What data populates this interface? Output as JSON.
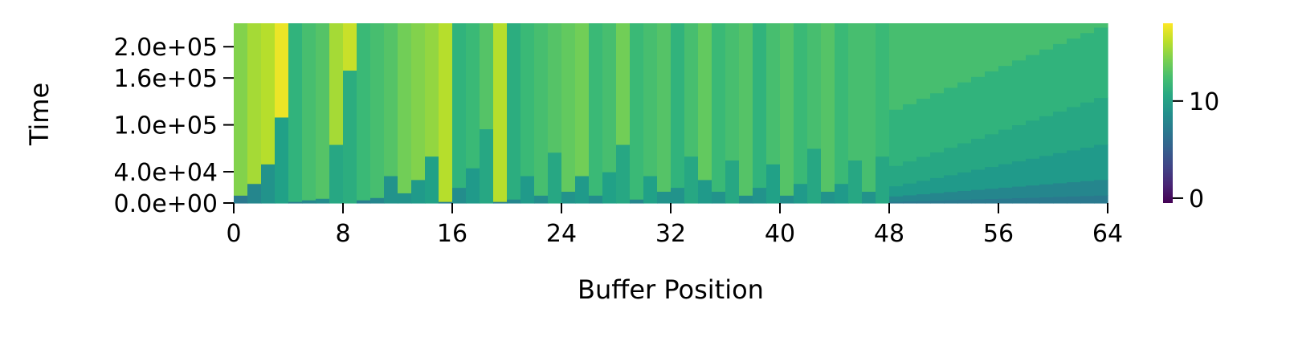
{
  "chart_data": {
    "type": "heatmap",
    "title": "",
    "xlabel": "Buffer Position",
    "ylabel": "Time",
    "x_range": [
      0,
      64
    ],
    "x_ticks": [
      "0",
      "8",
      "16",
      "24",
      "32",
      "40",
      "48",
      "56",
      "64"
    ],
    "y_range": [
      0,
      230000
    ],
    "y_ticks": [
      {
        "value": 0,
        "label": "0.0e+00"
      },
      {
        "value": 40000,
        "label": "4.0e+04"
      },
      {
        "value": 100000,
        "label": "1.0e+05"
      },
      {
        "value": 160000,
        "label": "1.6e+05"
      },
      {
        "value": 200000,
        "label": "2.0e+05"
      }
    ],
    "colorbar": {
      "colormap": "viridis",
      "range": [
        -0.5,
        18
      ],
      "ticks": [
        "0",
        "10"
      ]
    },
    "columns": [
      {
        "col": 0,
        "bounds": [
          10000
        ],
        "values": [
          7,
          14.5
        ]
      },
      {
        "col": 1,
        "bounds": [
          25000
        ],
        "values": [
          8,
          15.5
        ]
      },
      {
        "col": 2,
        "bounds": [
          50000
        ],
        "values": [
          9,
          16
        ]
      },
      {
        "col": 3,
        "bounds": [
          110000
        ],
        "values": [
          10,
          17.5
        ]
      },
      {
        "col": 4,
        "bounds": [
          2000
        ],
        "values": [
          7.5,
          11.5
        ]
      },
      {
        "col": 5,
        "bounds": [
          4000
        ],
        "values": [
          8,
          12.5
        ]
      },
      {
        "col": 6,
        "bounds": [
          6000
        ],
        "values": [
          8.5,
          13
        ]
      },
      {
        "col": 7,
        "bounds": [
          75000
        ],
        "values": [
          10.5,
          15.5
        ]
      },
      {
        "col": 8,
        "bounds": [
          170000
        ],
        "values": [
          11,
          16.5
        ]
      },
      {
        "col": 9,
        "bounds": [
          4000
        ],
        "values": [
          7.5,
          12
        ]
      },
      {
        "col": 10,
        "bounds": [
          7000
        ],
        "values": [
          8,
          12.5
        ]
      },
      {
        "col": 11,
        "bounds": [
          35000
        ],
        "values": [
          9,
          13
        ]
      },
      {
        "col": 12,
        "bounds": [
          13000
        ],
        "values": [
          9,
          14
        ]
      },
      {
        "col": 13,
        "bounds": [
          30000
        ],
        "values": [
          9.5,
          14.5
        ]
      },
      {
        "col": 14,
        "bounds": [
          60000
        ],
        "values": [
          10,
          15
        ]
      },
      {
        "col": 15,
        "bounds": [
          2000
        ],
        "values": [
          7.5,
          16
        ]
      },
      {
        "col": 16,
        "bounds": [
          20000
        ],
        "values": [
          8.5,
          11.5
        ]
      },
      {
        "col": 17,
        "bounds": [
          45000
        ],
        "values": [
          9.5,
          12
        ]
      },
      {
        "col": 18,
        "bounds": [
          95000
        ],
        "values": [
          10.5,
          13
        ]
      },
      {
        "col": 19,
        "bounds": [
          2000
        ],
        "values": [
          7.5,
          16
        ]
      },
      {
        "col": 20,
        "bounds": [
          5000
        ],
        "values": [
          8,
          11
        ]
      },
      {
        "col": 21,
        "bounds": [
          35000
        ],
        "values": [
          9.5,
          12
        ]
      },
      {
        "col": 22,
        "bounds": [
          10000
        ],
        "values": [
          8.5,
          12.5
        ]
      },
      {
        "col": 23,
        "bounds": [
          65000
        ],
        "values": [
          10.5,
          13
        ]
      },
      {
        "col": 24,
        "bounds": [
          15000
        ],
        "values": [
          9,
          13.5
        ]
      },
      {
        "col": 25,
        "bounds": [
          35000
        ],
        "values": [
          9.5,
          14
        ]
      },
      {
        "col": 26,
        "bounds": [
          10000
        ],
        "values": [
          8.5,
          12
        ]
      },
      {
        "col": 27,
        "bounds": [
          40000
        ],
        "values": [
          10,
          12.5
        ]
      },
      {
        "col": 28,
        "bounds": [
          75000
        ],
        "values": [
          10.5,
          14
        ]
      },
      {
        "col": 29,
        "bounds": [
          5000
        ],
        "values": [
          8,
          12
        ]
      },
      {
        "col": 30,
        "bounds": [
          35000
        ],
        "values": [
          10,
          12.5
        ]
      },
      {
        "col": 31,
        "bounds": [
          15000
        ],
        "values": [
          9,
          13
        ]
      },
      {
        "col": 32,
        "bounds": [
          20000
        ],
        "values": [
          9,
          11.5
        ]
      },
      {
        "col": 33,
        "bounds": [
          60000
        ],
        "values": [
          10.5,
          12.5
        ]
      },
      {
        "col": 34,
        "bounds": [
          30000
        ],
        "values": [
          9.5,
          13.5
        ]
      },
      {
        "col": 35,
        "bounds": [
          15000
        ],
        "values": [
          9,
          12
        ]
      },
      {
        "col": 36,
        "bounds": [
          55000
        ],
        "values": [
          10.5,
          12.5
        ]
      },
      {
        "col": 37,
        "bounds": [
          10000
        ],
        "values": [
          8.5,
          13
        ]
      },
      {
        "col": 38,
        "bounds": [
          20000
        ],
        "values": [
          9,
          11.5
        ]
      },
      {
        "col": 39,
        "bounds": [
          50000
        ],
        "values": [
          10,
          12.5
        ]
      },
      {
        "col": 40,
        "bounds": [
          10000
        ],
        "values": [
          8.5,
          13
        ]
      },
      {
        "col": 41,
        "bounds": [
          25000
        ],
        "values": [
          9.5,
          12
        ]
      },
      {
        "col": 42,
        "bounds": [
          70000
        ],
        "values": [
          10.5,
          12.5
        ]
      },
      {
        "col": 43,
        "bounds": [
          15000
        ],
        "values": [
          9,
          13
        ]
      },
      {
        "col": 44,
        "bounds": [
          25000
        ],
        "values": [
          9.5,
          12
        ]
      },
      {
        "col": 45,
        "bounds": [
          55000
        ],
        "values": [
          10.5,
          12.5
        ]
      },
      {
        "col": 46,
        "bounds": [
          15000
        ],
        "values": [
          9,
          12.5
        ]
      },
      {
        "col": 47,
        "bounds": [
          60000
        ],
        "values": [
          10.5,
          12
        ]
      }
    ],
    "tail": {
      "start_col": 48,
      "end_col": 64,
      "top_value": 12.5,
      "layers": [
        {
          "value": 7,
          "top_start": 2000,
          "top_end": 10000
        },
        {
          "value": 8,
          "top_start": 9000,
          "top_end": 30000
        },
        {
          "value": 9.5,
          "top_start": 22000,
          "top_end": 75000
        },
        {
          "value": 10.5,
          "top_start": 48000,
          "top_end": 135000
        },
        {
          "value": 11.5,
          "top_start": 120000,
          "top_end": 225000
        }
      ]
    }
  }
}
